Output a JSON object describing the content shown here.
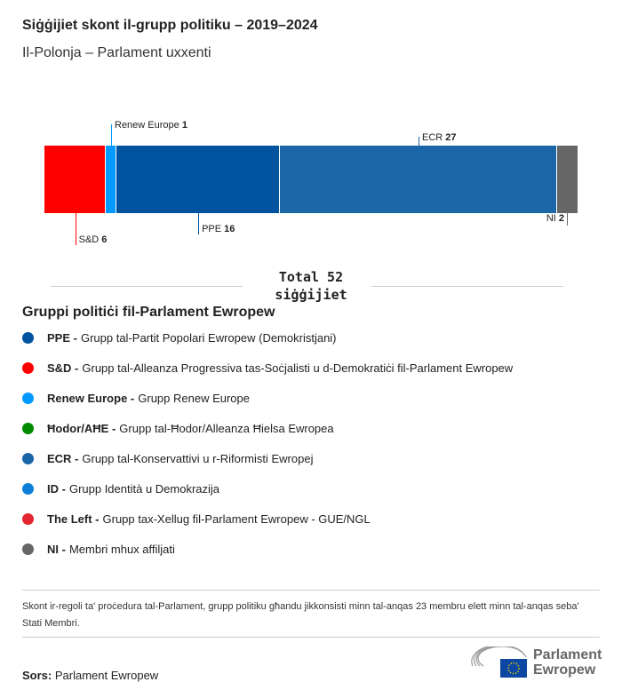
{
  "header": {
    "title": "Siġġijiet skont il-grupp politiku – 2019–2024",
    "subtitle": "Il-Polonja – Parlament uxxenti"
  },
  "chart_data": {
    "type": "bar",
    "orientation": "stacked-horizontal",
    "total": 52,
    "categories": [
      "S&D",
      "Renew Europe",
      "PPE",
      "ECR",
      "NI"
    ],
    "values": [
      6,
      1,
      16,
      27,
      2
    ],
    "colors": [
      "#ff0000",
      "#0099ff",
      "#00549f",
      "#1a66a6",
      "#666666"
    ],
    "total_label": "Total 52",
    "total_unit": "siġġijiet"
  },
  "legend": {
    "title": "Gruppi politiċi fil-Parlament Ewropew",
    "items": [
      {
        "abbr": "PPE -",
        "name": "Grupp tal-Partit Popolari Ewropew (Demokristjani)",
        "color": "#00549f"
      },
      {
        "abbr": "S&D -",
        "name": "Grupp tal-Alleanza Progressiva tas-Soċjalisti u d-Demokratiċi fil-Parlament Ewropew",
        "color": "#ff0000"
      },
      {
        "abbr": "Renew Europe -",
        "name": "Grupp Renew Europe",
        "color": "#0099ff"
      },
      {
        "abbr": "Ħodor/AĦE -",
        "name": "Grupp tal-Ħodor/Alleanza Ħielsa Ewropea",
        "color": "#008a00"
      },
      {
        "abbr": "ECR -",
        "name": "Grupp tal-Konservattivi u r-Riformisti Ewropej",
        "color": "#1a66a6"
      },
      {
        "abbr": "ID -",
        "name": "Grupp Identità u Demokrazija",
        "color": "#0e7fd6"
      },
      {
        "abbr": "The Left -",
        "name": "Grupp tax-Xellug fil-Parlament Ewropew - GUE/NGL",
        "color": "#e3252f"
      },
      {
        "abbr": "NI -",
        "name": "Membri mhux affiljati",
        "color": "#666666"
      }
    ]
  },
  "note": "Skont ir-regoli ta' proċedura tal-Parlament, grupp politiku għandu jikkonsisti minn tal-anqas 23 membru elett minn tal-anqas seba' Stati Membri.",
  "source": {
    "label": "Sors:",
    "value": "Parlament Ewropew"
  },
  "logo": {
    "text1": "Parlament",
    "text2": "Ewropew"
  }
}
